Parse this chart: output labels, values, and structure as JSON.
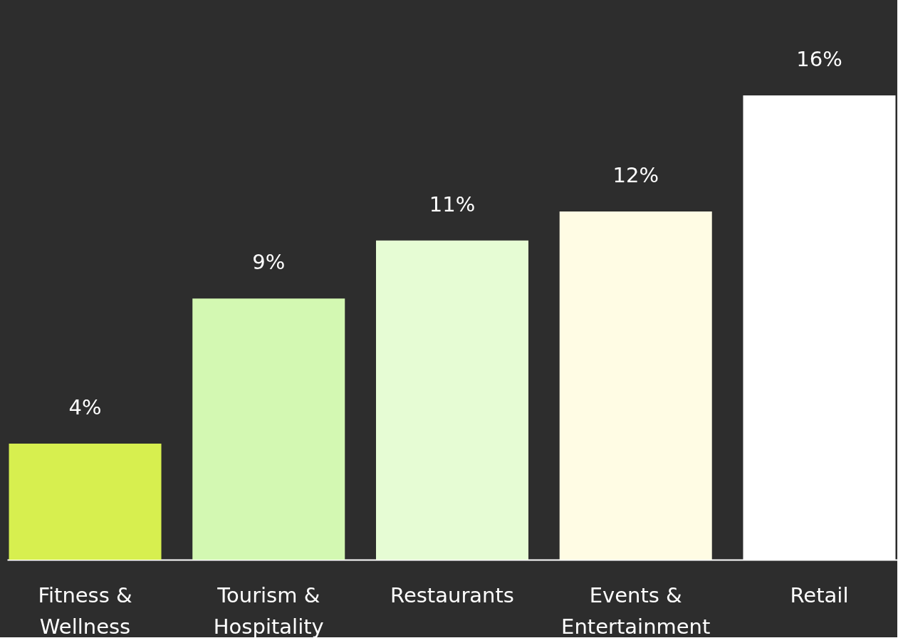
{
  "chart_data": {
    "type": "bar",
    "categories": [
      "Fitness & Wellness",
      "Tourism & Hospitality",
      "Restaurants",
      "Events & Entertainment",
      "Retail"
    ],
    "values": [
      4,
      9,
      11,
      12,
      16
    ],
    "colors": [
      "#d7ef4f",
      "#d3f8b2",
      "#e6fcd4",
      "#fffce4",
      "#ffffff"
    ],
    "value_labels": [
      "4%",
      "9%",
      "11%",
      "12%",
      "16%"
    ],
    "grid": false
  }
}
